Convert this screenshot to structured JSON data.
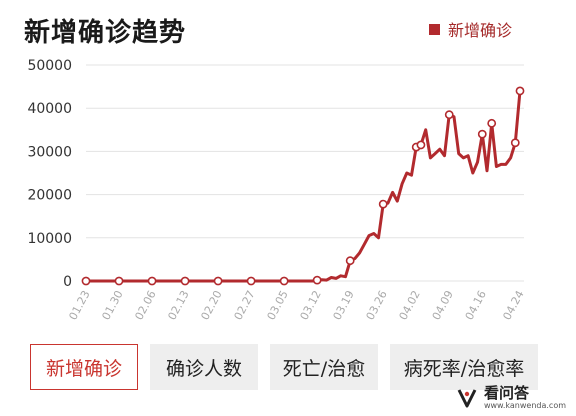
{
  "page": {
    "title": "新增确诊趋势"
  },
  "legend": {
    "label": "新增确诊",
    "color": "#b22a2e"
  },
  "tabs": [
    {
      "label": "新增确诊",
      "active": true
    },
    {
      "label": "确诊人数",
      "active": false
    },
    {
      "label": "死亡/治愈",
      "active": false
    },
    {
      "label": "病死率/治愈率",
      "active": false
    }
  ],
  "watermark": {
    "main": "看问答",
    "sub": "www.kanwenda.com"
  },
  "chart_data": {
    "type": "line",
    "title": "新增确诊趋势",
    "xlabel": "",
    "ylabel": "",
    "ylim": [
      0,
      50000
    ],
    "yticks": [
      0,
      10000,
      20000,
      30000,
      40000,
      50000
    ],
    "grid": true,
    "legend_position": "top-right",
    "xticks": [
      "01.23",
      "01.30",
      "02.06",
      "02.13",
      "02.20",
      "02.27",
      "03.05",
      "03.12",
      "03.19",
      "03.26",
      "04.02",
      "04.09",
      "04.16",
      "04.24"
    ],
    "x": [
      "01.23",
      "01.24",
      "01.25",
      "01.26",
      "01.27",
      "01.28",
      "01.29",
      "01.30",
      "01.31",
      "02.01",
      "02.02",
      "02.03",
      "02.04",
      "02.05",
      "02.06",
      "02.07",
      "02.08",
      "02.09",
      "02.10",
      "02.11",
      "02.12",
      "02.13",
      "02.14",
      "02.15",
      "02.16",
      "02.17",
      "02.18",
      "02.19",
      "02.20",
      "02.21",
      "02.22",
      "02.23",
      "02.24",
      "02.25",
      "02.26",
      "02.27",
      "02.28",
      "02.29",
      "03.01",
      "03.02",
      "03.03",
      "03.04",
      "03.05",
      "03.06",
      "03.07",
      "03.08",
      "03.09",
      "03.10",
      "03.11",
      "03.12",
      "03.13",
      "03.14",
      "03.15",
      "03.16",
      "03.17",
      "03.18",
      "03.19",
      "03.20",
      "03.21",
      "03.22",
      "03.23",
      "03.24",
      "03.25",
      "03.26",
      "03.27",
      "03.28",
      "03.29",
      "03.30",
      "03.31",
      "04.01",
      "04.02",
      "04.03",
      "04.04",
      "04.05",
      "04.06",
      "04.07",
      "04.08",
      "04.09",
      "04.10",
      "04.11",
      "04.12",
      "04.13",
      "04.14",
      "04.15",
      "04.16",
      "04.17",
      "04.18",
      "04.19",
      "04.20",
      "04.21",
      "04.22",
      "04.23",
      "04.24"
    ],
    "series": [
      {
        "name": "新增确诊",
        "color": "#b22a2e",
        "values": [
          0,
          0,
          0,
          0,
          0,
          0,
          0,
          0,
          0,
          0,
          0,
          0,
          0,
          0,
          0,
          0,
          0,
          0,
          0,
          0,
          0,
          0,
          0,
          0,
          0,
          0,
          0,
          0,
          0,
          0,
          0,
          0,
          0,
          0,
          0,
          0,
          0,
          0,
          0,
          0,
          0,
          0,
          0,
          0,
          0,
          0,
          0,
          0,
          0,
          200,
          300,
          200,
          800,
          600,
          1200,
          1000,
          4700,
          5200,
          6500,
          8500,
          10500,
          11000,
          10000,
          17800,
          18000,
          20500,
          18500,
          22500,
          25000,
          24500,
          31000,
          31500,
          35000,
          28500,
          29500,
          30500,
          29000,
          38500,
          38000,
          29500,
          28500,
          29000,
          25000,
          27500,
          34000,
          25500,
          36500,
          26500,
          27000,
          27000,
          28500,
          32000,
          44000
        ]
      }
    ],
    "markers": [
      "01.23",
      "01.30",
      "02.06",
      "02.13",
      "02.20",
      "02.27",
      "03.05",
      "03.12",
      "03.19",
      "03.26",
      "04.02",
      "04.09",
      "04.16",
      "04.23",
      "04.24"
    ]
  }
}
